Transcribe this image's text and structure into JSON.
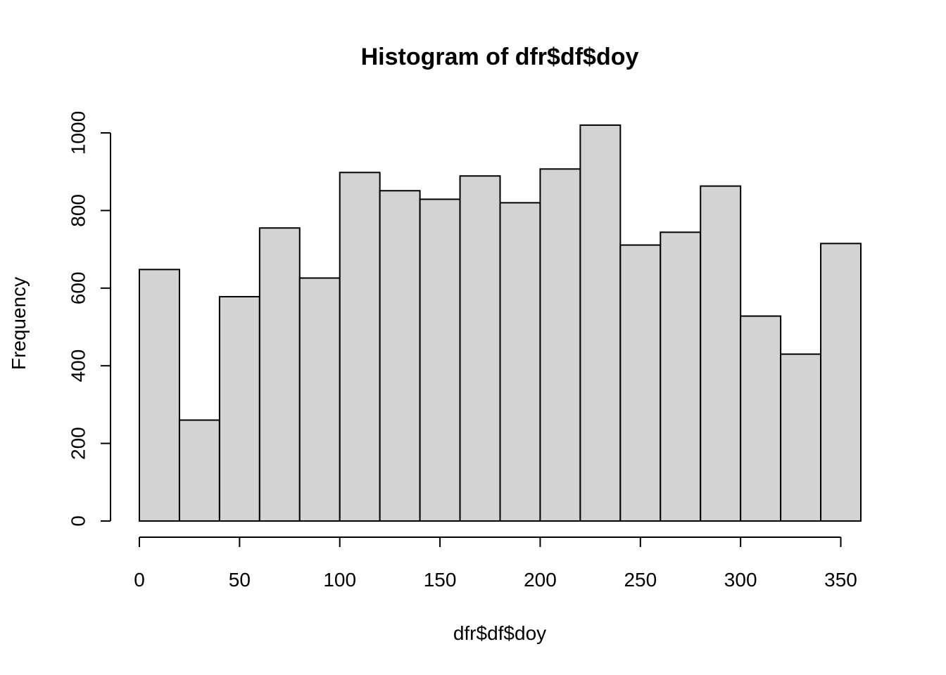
{
  "chart_data": {
    "type": "bar",
    "title": "Histogram of dfr$df$doy",
    "xlabel": "dfr$df$doy",
    "ylabel": "Frequency",
    "bin_edges": [
      0,
      20,
      40,
      60,
      80,
      100,
      120,
      140,
      160,
      180,
      200,
      220,
      240,
      260,
      280,
      300,
      320,
      340,
      360
    ],
    "values": [
      648,
      260,
      578,
      755,
      626,
      898,
      851,
      829,
      889,
      820,
      907,
      1020,
      711,
      744,
      863,
      528,
      430,
      715
    ],
    "xlim": [
      0,
      360
    ],
    "ylim": [
      0,
      1000
    ],
    "x_ticks": [
      0,
      50,
      100,
      150,
      200,
      250,
      300,
      350
    ],
    "y_ticks": [
      0,
      200,
      400,
      600,
      800,
      1000
    ],
    "bar_color": "#d3d3d3",
    "grid": false,
    "legend": "none"
  }
}
